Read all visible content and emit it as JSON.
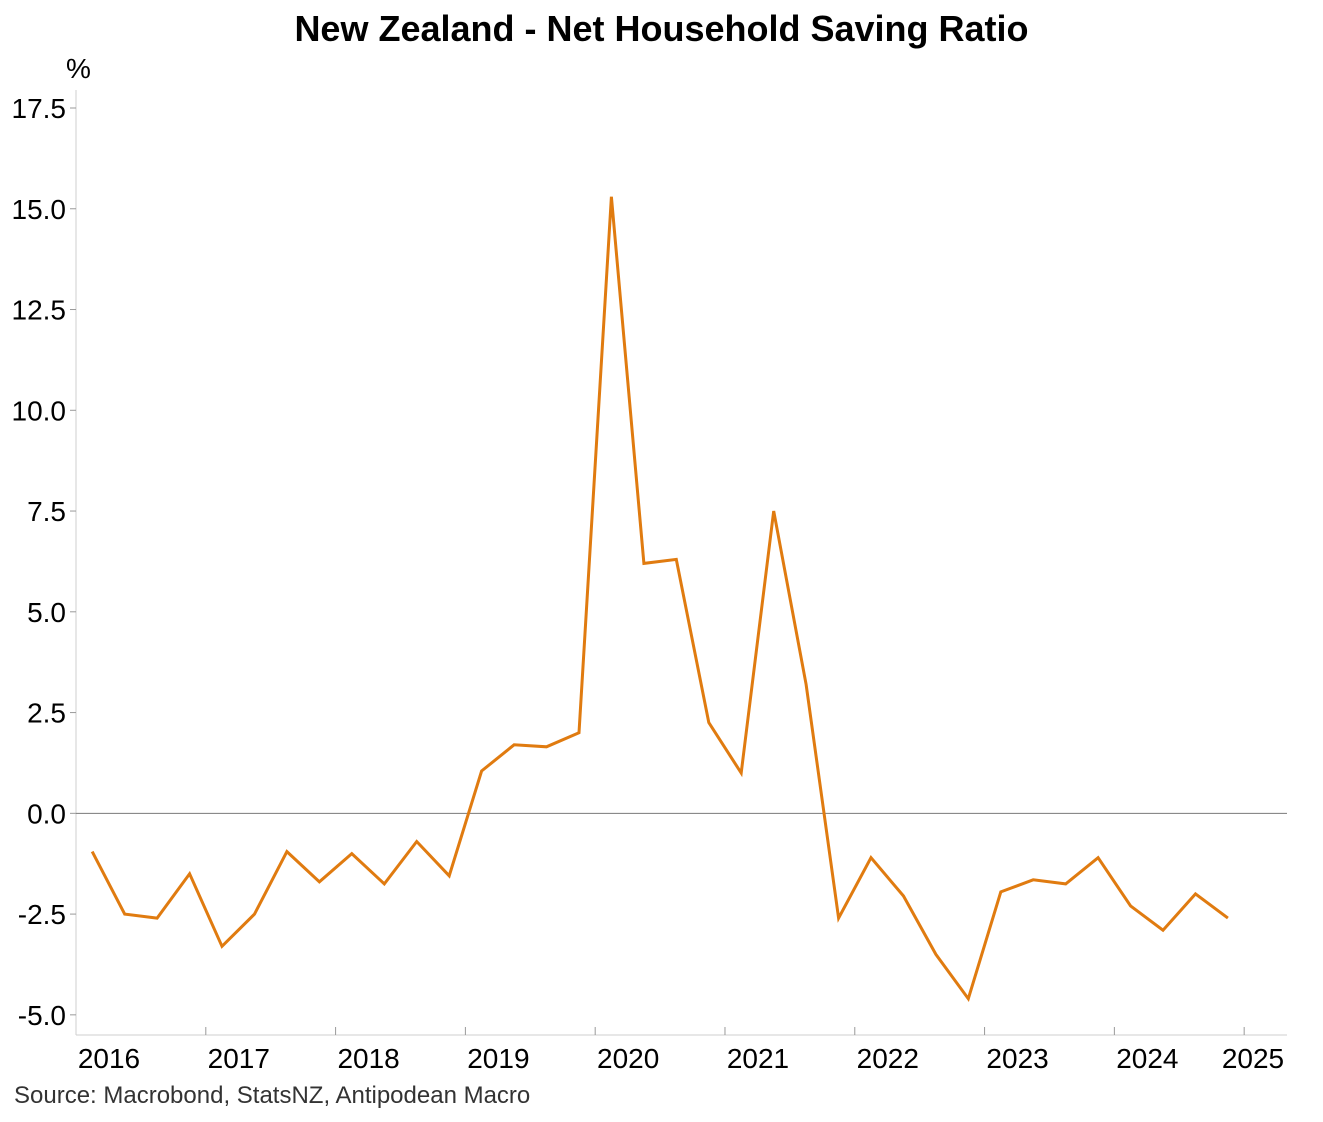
{
  "title": "New Zealand - Net Household Saving Ratio",
  "source": "Source: Macrobond, StatsNZ, Antipodean Macro",
  "chart_data": {
    "type": "line",
    "title": "New Zealand - Net Household Saving Ratio",
    "ylabel": "%",
    "xlabel": "",
    "ylim": [
      -5.5,
      17.5
    ],
    "yticks": [
      "17.5",
      "15.0",
      "12.5",
      "10.0",
      "7.5",
      "5.0",
      "2.5",
      "0.0",
      "-2.5",
      "-5.0"
    ],
    "ytick_values": [
      17.5,
      15.0,
      12.5,
      10.0,
      7.5,
      5.0,
      2.5,
      0.0,
      -2.5,
      -5.0
    ],
    "xticks": [
      "2016",
      "2017",
      "2018",
      "2019",
      "2020",
      "2021",
      "2022",
      "2023",
      "2024",
      "2025"
    ],
    "grid": false,
    "zero_line": true,
    "series_color": "#e07b10",
    "series": [
      {
        "x": [
          "2016-Q1",
          "2016-Q2",
          "2016-Q3",
          "2016-Q4",
          "2017-Q1",
          "2017-Q2",
          "2017-Q3",
          "2017-Q4",
          "2018-Q1",
          "2018-Q2",
          "2018-Q3",
          "2018-Q4",
          "2019-Q1",
          "2019-Q2",
          "2019-Q3",
          "2019-Q4",
          "2020-Q1",
          "2020-Q2",
          "2020-Q3",
          "2020-Q4",
          "2021-Q1",
          "2021-Q2",
          "2021-Q3",
          "2021-Q4",
          "2022-Q1",
          "2022-Q2",
          "2022-Q3",
          "2022-Q4",
          "2023-Q1",
          "2023-Q2",
          "2023-Q3",
          "2023-Q4",
          "2024-Q1",
          "2024-Q2",
          "2024-Q3",
          "2024-Q4"
        ],
        "values": [
          -0.95,
          -2.5,
          -2.6,
          -1.5,
          -3.3,
          -2.5,
          -0.95,
          -1.7,
          -1.0,
          -1.75,
          -0.7,
          -1.55,
          1.05,
          1.7,
          1.65,
          2.0,
          15.3,
          6.2,
          6.3,
          2.25,
          1.0,
          7.5,
          3.2,
          -2.6,
          -1.1,
          -2.05,
          -3.5,
          -4.6,
          -1.95,
          -1.65,
          -1.75,
          -1.1,
          -2.3,
          -2.9,
          -2.0,
          -2.6
        ]
      }
    ]
  }
}
